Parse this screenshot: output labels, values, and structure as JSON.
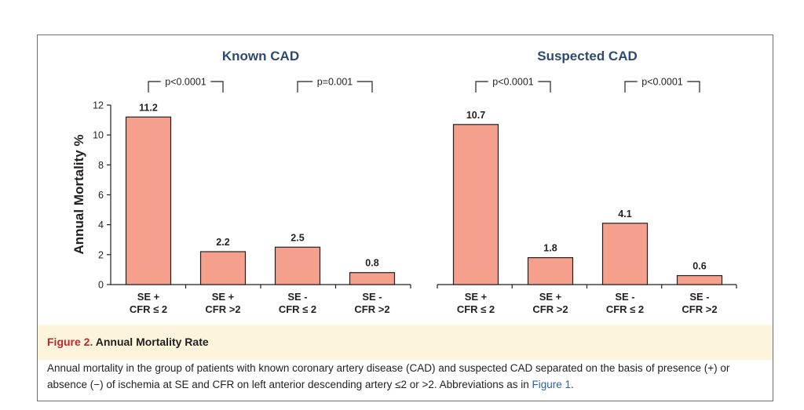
{
  "chart_data": {
    "type": "bar",
    "ylabel": "Annual Mortality %",
    "ylim": [
      0,
      12
    ],
    "yticks": [
      "0",
      "2",
      "4",
      "6",
      "8",
      "10",
      "12"
    ],
    "bar_color": "#f4a08c",
    "grid": false,
    "panels": [
      {
        "title": "Known CAD",
        "categories": [
          {
            "line1": "SE +",
            "line2": "CFR ≤ 2"
          },
          {
            "line1": "SE +",
            "line2": "CFR >2"
          },
          {
            "line1": "SE -",
            "line2": "CFR ≤ 2"
          },
          {
            "line1": "SE -",
            "line2": "CFR >2"
          }
        ],
        "values": [
          11.2,
          2.2,
          2.5,
          0.8
        ],
        "value_labels": [
          "11.2",
          "2.2",
          "2.5",
          "0.8"
        ],
        "comparisons": [
          {
            "label": "p<0.0001",
            "pair": [
              0,
              1
            ]
          },
          {
            "label": "p=0.001",
            "pair": [
              2,
              3
            ]
          }
        ]
      },
      {
        "title": "Suspected CAD",
        "categories": [
          {
            "line1": "SE +",
            "line2": "CFR ≤ 2"
          },
          {
            "line1": "SE +",
            "line2": "CFR >2"
          },
          {
            "line1": "SE -",
            "line2": "CFR ≤ 2"
          },
          {
            "line1": "SE -",
            "line2": "CFR >2"
          }
        ],
        "values": [
          10.7,
          1.8,
          4.1,
          0.6
        ],
        "value_labels": [
          "10.7",
          "1.8",
          "4.1",
          "0.6"
        ],
        "comparisons": [
          {
            "label": "p<0.0001",
            "pair": [
              0,
              1
            ]
          },
          {
            "label": "p<0.0001",
            "pair": [
              2,
              3
            ]
          }
        ]
      }
    ]
  },
  "caption": {
    "label": "Figure 2.",
    "title": "Annual Mortality Rate",
    "text_before_link": "Annual mortality in the group of patients with known coronary artery disease (CAD) and suspected CAD separated on the basis of presence (+) or absence (−) of ischemia at SE and CFR on left anterior descending artery ≤2 or >2. Abbreviations as in ",
    "link": "Figure 1",
    "text_after_link": "."
  }
}
